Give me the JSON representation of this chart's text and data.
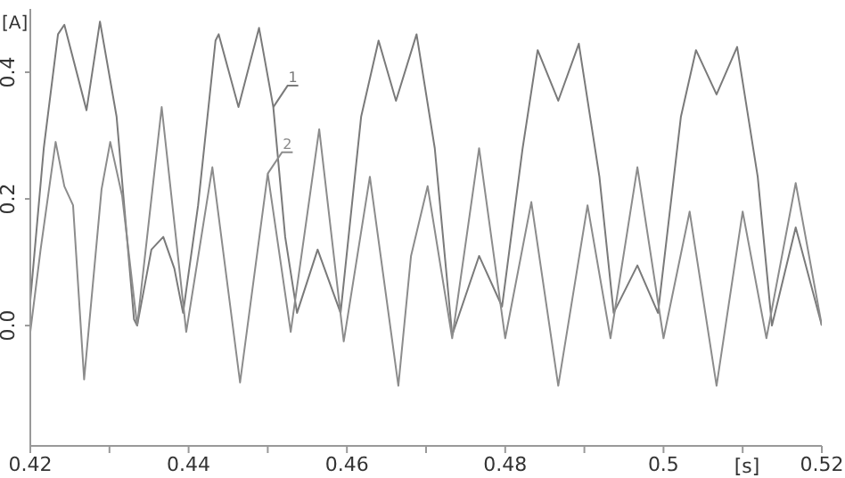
{
  "chart_data": {
    "type": "line",
    "xlabel": "[s]",
    "ylabel": "[A]",
    "xlim": [
      0.42,
      0.52
    ],
    "xticks": [
      0.42,
      {
        "value": 0.43,
        "label": null
      },
      0.44,
      {
        "value": 0.45,
        "label": null
      },
      0.46,
      {
        "value": 0.47,
        "label": null
      },
      0.48,
      {
        "value": 0.49,
        "label": null
      },
      0.5,
      {
        "value": 0.51,
        "label": null
      },
      0.52
    ],
    "ylim": [
      -0.19,
      0.5
    ],
    "yticks": [
      {
        "value": 0,
        "label": "0.0"
      },
      0.2,
      0.4
    ],
    "marker": "none",
    "line_style": "solid",
    "series": [
      {
        "name": "1",
        "color": "#7a7a7a",
        "x": [
          0.42,
          0.4217,
          0.4235,
          0.4243,
          0.4271,
          0.4288,
          0.4309,
          0.4331,
          0.4335,
          0.4353,
          0.4368,
          0.4382,
          0.4393,
          0.4412,
          0.4434,
          0.4438,
          0.4463,
          0.4489,
          0.4507,
          0.4522,
          0.4537,
          0.4563,
          0.4592,
          0.4618,
          0.464,
          0.4662,
          0.4688,
          0.4711,
          0.4733,
          0.4767,
          0.4796,
          0.4822,
          0.4841,
          0.4867,
          0.4893,
          0.4919,
          0.4937,
          0.4967,
          0.4993,
          0.5022,
          0.5041,
          0.5067,
          0.5093,
          0.5119,
          0.5137,
          0.5167,
          0.52
        ],
        "values": [
          0.04,
          0.28,
          0.46,
          0.475,
          0.34,
          0.48,
          0.33,
          0.01,
          0.0,
          0.12,
          0.14,
          0.09,
          0.02,
          0.19,
          0.45,
          0.46,
          0.345,
          0.47,
          0.345,
          0.14,
          0.02,
          0.12,
          0.02,
          0.33,
          0.45,
          0.355,
          0.46,
          0.28,
          -0.015,
          0.11,
          0.03,
          0.28,
          0.435,
          0.355,
          0.445,
          0.235,
          0.02,
          0.095,
          0.02,
          0.33,
          0.435,
          0.365,
          0.44,
          0.235,
          0.0,
          0.155,
          0.0
        ]
      },
      {
        "name": "2",
        "color": "#8c8c8c",
        "x": [
          0.42,
          0.4213,
          0.4232,
          0.4243,
          0.4254,
          0.4268,
          0.429,
          0.4301,
          0.4316,
          0.4335,
          0.4366,
          0.4397,
          0.443,
          0.4465,
          0.45,
          0.4529,
          0.4565,
          0.4596,
          0.4629,
          0.4665,
          0.4681,
          0.4702,
          0.4733,
          0.4767,
          0.48,
          0.4833,
          0.4867,
          0.4904,
          0.4933,
          0.4967,
          0.5,
          0.5033,
          0.5067,
          0.51,
          0.513,
          0.5167,
          0.52
        ],
        "values": [
          -0.01,
          0.12,
          0.29,
          0.22,
          0.19,
          -0.085,
          0.215,
          0.29,
          0.205,
          0.0,
          0.345,
          -0.01,
          0.25,
          -0.09,
          0.24,
          -0.01,
          0.31,
          -0.025,
          0.235,
          -0.095,
          0.11,
          0.22,
          -0.02,
          0.28,
          -0.02,
          0.195,
          -0.095,
          0.19,
          -0.02,
          0.25,
          -0.02,
          0.18,
          -0.095,
          0.18,
          -0.02,
          0.225,
          0.0
        ]
      }
    ]
  }
}
